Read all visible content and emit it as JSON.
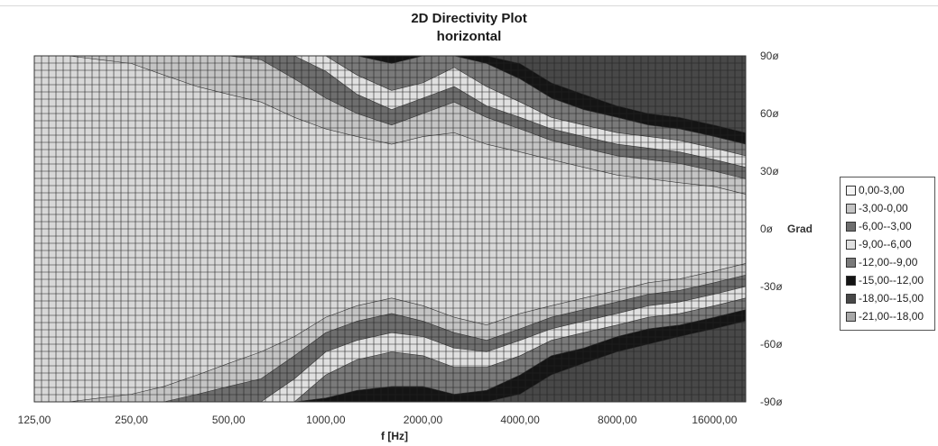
{
  "chart_data": {
    "type": "heatmap",
    "title": "2D Directivity Plot",
    "subtitle": "horizontal",
    "xlabel": "f [Hz]",
    "ylabel": "Grad",
    "x_scale": "log",
    "x_ticks": [
      "125,00",
      "250,00",
      "500,00",
      "1000,00",
      "2000,00",
      "4000,00",
      "8000,00",
      "16000,00"
    ],
    "x_tick_values": [
      125,
      250,
      500,
      1000,
      2000,
      4000,
      8000,
      16000
    ],
    "xlim": [
      125,
      20000
    ],
    "y_ticks": [
      "90ø",
      "60ø",
      "30ø",
      "0ø",
      "-30ø",
      "-60ø",
      "-90ø"
    ],
    "y_tick_values": [
      90,
      60,
      30,
      0,
      -30,
      -60,
      -90
    ],
    "ylim": [
      -90,
      90
    ],
    "grid": true,
    "legend_position": "right",
    "levels": [
      {
        "label": "0,00-3,00",
        "range": [
          0,
          3
        ],
        "color": "#f4f4f4"
      },
      {
        "label": "-3,00-0,00",
        "range": [
          -3,
          0
        ],
        "color": "#c4c4c4"
      },
      {
        "label": "-6,00--3,00",
        "range": [
          -6,
          -3
        ],
        "color": "#6e6e6e"
      },
      {
        "label": "-9,00--6,00",
        "range": [
          -9,
          -6
        ],
        "color": "#e0e0e0"
      },
      {
        "label": "-12,00--9,00",
        "range": [
          -12,
          -9
        ],
        "color": "#7a7a7a"
      },
      {
        "label": "-15,00--12,00",
        "range": [
          -15,
          -12
        ],
        "color": "#141414"
      },
      {
        "label": "-18,00--15,00",
        "range": [
          -18,
          -15
        ],
        "color": "#484848"
      },
      {
        "label": "-21,00--18,00",
        "range": [
          -21,
          -18
        ],
        "color": "#a8a8a8"
      }
    ],
    "frequencies": [
      125,
      160,
      200,
      250,
      315,
      400,
      500,
      630,
      800,
      1000,
      1250,
      1600,
      2000,
      2500,
      3150,
      4000,
      5000,
      6300,
      8000,
      10000,
      12500,
      16000,
      20000
    ],
    "contours": {
      "upper": [
        {
          "level": "-3,00-0,00",
          "angles": [
            90,
            90,
            88,
            86,
            80,
            74,
            70,
            66,
            58,
            52,
            48,
            44,
            48,
            50,
            44,
            40,
            36,
            32,
            28,
            26,
            24,
            22,
            18
          ]
        },
        {
          "level": "-6,00--3,00",
          "angles": [
            90,
            90,
            90,
            90,
            90,
            90,
            90,
            88,
            78,
            68,
            60,
            54,
            60,
            66,
            58,
            52,
            46,
            42,
            38,
            36,
            34,
            30,
            26
          ]
        },
        {
          "level": "-9,00--6,00",
          "angles": [
            90,
            90,
            90,
            90,
            90,
            90,
            90,
            90,
            90,
            82,
            70,
            62,
            68,
            74,
            64,
            58,
            52,
            48,
            44,
            42,
            40,
            36,
            32
          ]
        },
        {
          "level": "-12,00--9,00",
          "angles": [
            90,
            90,
            90,
            90,
            90,
            90,
            90,
            90,
            90,
            90,
            80,
            72,
            76,
            84,
            74,
            66,
            58,
            54,
            50,
            48,
            46,
            42,
            38
          ]
        },
        {
          "level": "-15,00--12,00",
          "angles": [
            90,
            90,
            90,
            90,
            90,
            90,
            90,
            90,
            90,
            90,
            90,
            86,
            90,
            90,
            86,
            78,
            68,
            62,
            58,
            54,
            52,
            48,
            44
          ]
        },
        {
          "level": "-18,00--15,00",
          "angles": [
            90,
            90,
            90,
            90,
            90,
            90,
            90,
            90,
            90,
            90,
            90,
            90,
            90,
            90,
            90,
            86,
            76,
            70,
            64,
            60,
            58,
            54,
            50
          ]
        }
      ],
      "lower": [
        {
          "level": "-3,00-0,00",
          "angles": [
            -90,
            -90,
            -88,
            -86,
            -82,
            -76,
            -70,
            -64,
            -56,
            -46,
            -40,
            -36,
            -40,
            -46,
            -50,
            -44,
            -40,
            -36,
            -32,
            -28,
            -26,
            -22,
            -18
          ]
        },
        {
          "level": "-6,00--3,00",
          "angles": [
            -90,
            -90,
            -90,
            -90,
            -90,
            -86,
            -82,
            -78,
            -66,
            -54,
            -48,
            -44,
            -48,
            -54,
            -58,
            -52,
            -46,
            -42,
            -38,
            -34,
            -32,
            -28,
            -24
          ]
        },
        {
          "level": "-9,00--6,00",
          "angles": [
            -90,
            -90,
            -90,
            -90,
            -90,
            -90,
            -90,
            -90,
            -78,
            -64,
            -58,
            -54,
            -56,
            -62,
            -64,
            -58,
            -52,
            -48,
            -44,
            -40,
            -38,
            -34,
            -30
          ]
        },
        {
          "level": "-12,00--9,00",
          "angles": [
            -90,
            -90,
            -90,
            -90,
            -90,
            -90,
            -90,
            -90,
            -90,
            -76,
            -68,
            -64,
            -66,
            -72,
            -72,
            -66,
            -58,
            -54,
            -50,
            -46,
            -44,
            -40,
            -36
          ]
        },
        {
          "level": "-15,00--12,00",
          "angles": [
            -90,
            -90,
            -90,
            -90,
            -90,
            -90,
            -90,
            -90,
            -90,
            -88,
            -84,
            -82,
            -82,
            -86,
            -84,
            -76,
            -66,
            -62,
            -56,
            -52,
            -50,
            -46,
            -42
          ]
        },
        {
          "level": "-18,00--15,00",
          "angles": [
            -90,
            -90,
            -90,
            -90,
            -90,
            -90,
            -90,
            -90,
            -90,
            -90,
            -90,
            -90,
            -90,
            -90,
            -90,
            -86,
            -76,
            -70,
            -64,
            -60,
            -56,
            -52,
            -48
          ]
        }
      ]
    }
  }
}
